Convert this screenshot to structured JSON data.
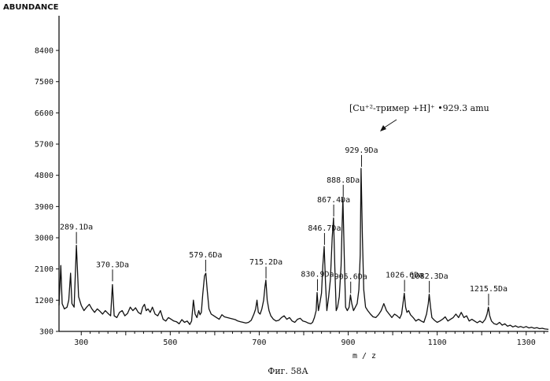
{
  "chart_data": {
    "type": "line",
    "ylabel": "ABUNDANCE",
    "xlabel": "m / z",
    "caption": "Фиг. 58А",
    "xlim": [
      250,
      1350
    ],
    "ylim": [
      300,
      9400
    ],
    "xticks": [
      "300",
      "500",
      "700",
      "900",
      "1100",
      "1300"
    ],
    "xtick_values": [
      300,
      500,
      700,
      900,
      1100,
      1300
    ],
    "yticks": [
      "300",
      "1200",
      "2100",
      "3000",
      "3900",
      "4800",
      "5700",
      "6600",
      "7500",
      "8400"
    ],
    "ytick_values": [
      300,
      1200,
      2100,
      3000,
      3900,
      4800,
      5700,
      6600,
      7500,
      8400
    ],
    "annotation": "[Cu⁺²-тример +H]⁺ •929.3 amu",
    "peak_labels": [
      {
        "text": "289.1Da",
        "x": 289.1,
        "y": 2780
      },
      {
        "text": "370.3Da",
        "x": 370.3,
        "y": 1700
      },
      {
        "text": "579.6Da",
        "x": 579.6,
        "y": 1980
      },
      {
        "text": "715.2Da",
        "x": 715.2,
        "y": 1780
      },
      {
        "text": "830.9Da",
        "x": 830.9,
        "y": 1420
      },
      {
        "text": "846.7Da",
        "x": 846.7,
        "y": 2750
      },
      {
        "text": "867.4Da",
        "x": 867.4,
        "y": 3570
      },
      {
        "text": "888.8Da",
        "x": 888.8,
        "y": 4140
      },
      {
        "text": "929.9Da",
        "x": 929.9,
        "y": 5000
      },
      {
        "text": "905.6Da",
        "x": 905.6,
        "y": 1350
      },
      {
        "text": "1026.6Da",
        "x": 1026.6,
        "y": 1400
      },
      {
        "text": "1082.3Da",
        "x": 1082.3,
        "y": 1370
      },
      {
        "text": "1215.5Da",
        "x": 1215.5,
        "y": 1000
      }
    ],
    "series": [
      {
        "points": [
          [
            250,
            1050
          ],
          [
            254,
            2200
          ],
          [
            257,
            1100
          ],
          [
            262,
            950
          ],
          [
            268,
            1000
          ],
          [
            272,
            1200
          ],
          [
            276,
            1980
          ],
          [
            279,
            1100
          ],
          [
            284,
            1000
          ],
          [
            289,
            2780
          ],
          [
            294,
            1300
          ],
          [
            300,
            1050
          ],
          [
            306,
            900
          ],
          [
            312,
            1000
          ],
          [
            318,
            1080
          ],
          [
            324,
            950
          ],
          [
            330,
            850
          ],
          [
            336,
            950
          ],
          [
            342,
            880
          ],
          [
            348,
            800
          ],
          [
            354,
            900
          ],
          [
            360,
            820
          ],
          [
            366,
            750
          ],
          [
            370,
            1650
          ],
          [
            374,
            750
          ],
          [
            380,
            700
          ],
          [
            386,
            850
          ],
          [
            392,
            900
          ],
          [
            398,
            750
          ],
          [
            404,
            820
          ],
          [
            410,
            1000
          ],
          [
            416,
            900
          ],
          [
            422,
            980
          ],
          [
            428,
            850
          ],
          [
            434,
            800
          ],
          [
            438,
            1000
          ],
          [
            442,
            1080
          ],
          [
            446,
            900
          ],
          [
            450,
            950
          ],
          [
            455,
            850
          ],
          [
            460,
            1000
          ],
          [
            466,
            800
          ],
          [
            472,
            750
          ],
          [
            478,
            900
          ],
          [
            484,
            650
          ],
          [
            490,
            600
          ],
          [
            496,
            700
          ],
          [
            502,
            650
          ],
          [
            508,
            600
          ],
          [
            514,
            580
          ],
          [
            520,
            520
          ],
          [
            526,
            640
          ],
          [
            532,
            560
          ],
          [
            538,
            600
          ],
          [
            544,
            500
          ],
          [
            548,
            600
          ],
          [
            552,
            1200
          ],
          [
            556,
            800
          ],
          [
            560,
            700
          ],
          [
            564,
            900
          ],
          [
            567,
            780
          ],
          [
            570,
            850
          ],
          [
            573,
            1350
          ],
          [
            577,
            1900
          ],
          [
            580,
            1980
          ],
          [
            583,
            1500
          ],
          [
            587,
            950
          ],
          [
            592,
            800
          ],
          [
            598,
            750
          ],
          [
            604,
            700
          ],
          [
            610,
            650
          ],
          [
            616,
            780
          ],
          [
            622,
            720
          ],
          [
            628,
            700
          ],
          [
            634,
            680
          ],
          [
            640,
            660
          ],
          [
            646,
            640
          ],
          [
            652,
            600
          ],
          [
            658,
            580
          ],
          [
            664,
            560
          ],
          [
            670,
            540
          ],
          [
            676,
            560
          ],
          [
            682,
            620
          ],
          [
            688,
            800
          ],
          [
            692,
            950
          ],
          [
            695,
            1200
          ],
          [
            698,
            850
          ],
          [
            702,
            800
          ],
          [
            706,
            950
          ],
          [
            710,
            1200
          ],
          [
            713,
            1600
          ],
          [
            715,
            1780
          ],
          [
            718,
            1200
          ],
          [
            722,
            900
          ],
          [
            726,
            750
          ],
          [
            732,
            650
          ],
          [
            738,
            600
          ],
          [
            744,
            620
          ],
          [
            750,
            700
          ],
          [
            756,
            750
          ],
          [
            762,
            650
          ],
          [
            768,
            700
          ],
          [
            774,
            600
          ],
          [
            780,
            560
          ],
          [
            786,
            650
          ],
          [
            792,
            680
          ],
          [
            798,
            600
          ],
          [
            804,
            580
          ],
          [
            810,
            540
          ],
          [
            816,
            520
          ],
          [
            820,
            560
          ],
          [
            824,
            700
          ],
          [
            828,
            900
          ],
          [
            830,
            1420
          ],
          [
            833,
            900
          ],
          [
            836,
            1100
          ],
          [
            840,
            1400
          ],
          [
            843,
            2200
          ],
          [
            846,
            2750
          ],
          [
            849,
            1700
          ],
          [
            852,
            900
          ],
          [
            856,
            1300
          ],
          [
            860,
            1800
          ],
          [
            864,
            3000
          ],
          [
            867,
            3570
          ],
          [
            870,
            2100
          ],
          [
            873,
            900
          ],
          [
            876,
            1000
          ],
          [
            880,
            1300
          ],
          [
            884,
            2200
          ],
          [
            886,
            3200
          ],
          [
            888,
            4140
          ],
          [
            891,
            2500
          ],
          [
            894,
            1000
          ],
          [
            898,
            900
          ],
          [
            902,
            1000
          ],
          [
            905,
            1350
          ],
          [
            908,
            1100
          ],
          [
            912,
            900
          ],
          [
            916,
            1000
          ],
          [
            920,
            1100
          ],
          [
            924,
            1500
          ],
          [
            927,
            2500
          ],
          [
            929,
            5000
          ],
          [
            932,
            3000
          ],
          [
            935,
            1500
          ],
          [
            939,
            1000
          ],
          [
            944,
            900
          ],
          [
            950,
            800
          ],
          [
            956,
            720
          ],
          [
            962,
            700
          ],
          [
            968,
            780
          ],
          [
            974,
            900
          ],
          [
            980,
            1100
          ],
          [
            986,
            900
          ],
          [
            992,
            800
          ],
          [
            998,
            700
          ],
          [
            1004,
            800
          ],
          [
            1010,
            750
          ],
          [
            1016,
            680
          ],
          [
            1020,
            800
          ],
          [
            1024,
            1200
          ],
          [
            1026,
            1400
          ],
          [
            1029,
            1000
          ],
          [
            1032,
            850
          ],
          [
            1036,
            900
          ],
          [
            1040,
            780
          ],
          [
            1046,
            700
          ],
          [
            1052,
            600
          ],
          [
            1058,
            650
          ],
          [
            1064,
            600
          ],
          [
            1070,
            560
          ],
          [
            1076,
            800
          ],
          [
            1080,
            1100
          ],
          [
            1082,
            1370
          ],
          [
            1085,
            1000
          ],
          [
            1088,
            700
          ],
          [
            1094,
            620
          ],
          [
            1100,
            560
          ],
          [
            1106,
            600
          ],
          [
            1112,
            650
          ],
          [
            1118,
            720
          ],
          [
            1124,
            600
          ],
          [
            1130,
            650
          ],
          [
            1136,
            700
          ],
          [
            1142,
            800
          ],
          [
            1148,
            700
          ],
          [
            1154,
            850
          ],
          [
            1160,
            700
          ],
          [
            1166,
            750
          ],
          [
            1172,
            600
          ],
          [
            1178,
            650
          ],
          [
            1184,
            600
          ],
          [
            1190,
            550
          ],
          [
            1196,
            600
          ],
          [
            1202,
            550
          ],
          [
            1208,
            650
          ],
          [
            1212,
            800
          ],
          [
            1215,
            1000
          ],
          [
            1218,
            750
          ],
          [
            1222,
            600
          ],
          [
            1228,
            520
          ],
          [
            1234,
            500
          ],
          [
            1240,
            560
          ],
          [
            1246,
            480
          ],
          [
            1252,
            520
          ],
          [
            1258,
            450
          ],
          [
            1264,
            480
          ],
          [
            1270,
            430
          ],
          [
            1276,
            460
          ],
          [
            1282,
            420
          ],
          [
            1288,
            440
          ],
          [
            1294,
            410
          ],
          [
            1300,
            440
          ],
          [
            1306,
            400
          ],
          [
            1312,
            420
          ],
          [
            1318,
            390
          ],
          [
            1324,
            410
          ],
          [
            1330,
            380
          ],
          [
            1336,
            390
          ],
          [
            1342,
            370
          ],
          [
            1350,
            360
          ]
        ]
      }
    ]
  }
}
